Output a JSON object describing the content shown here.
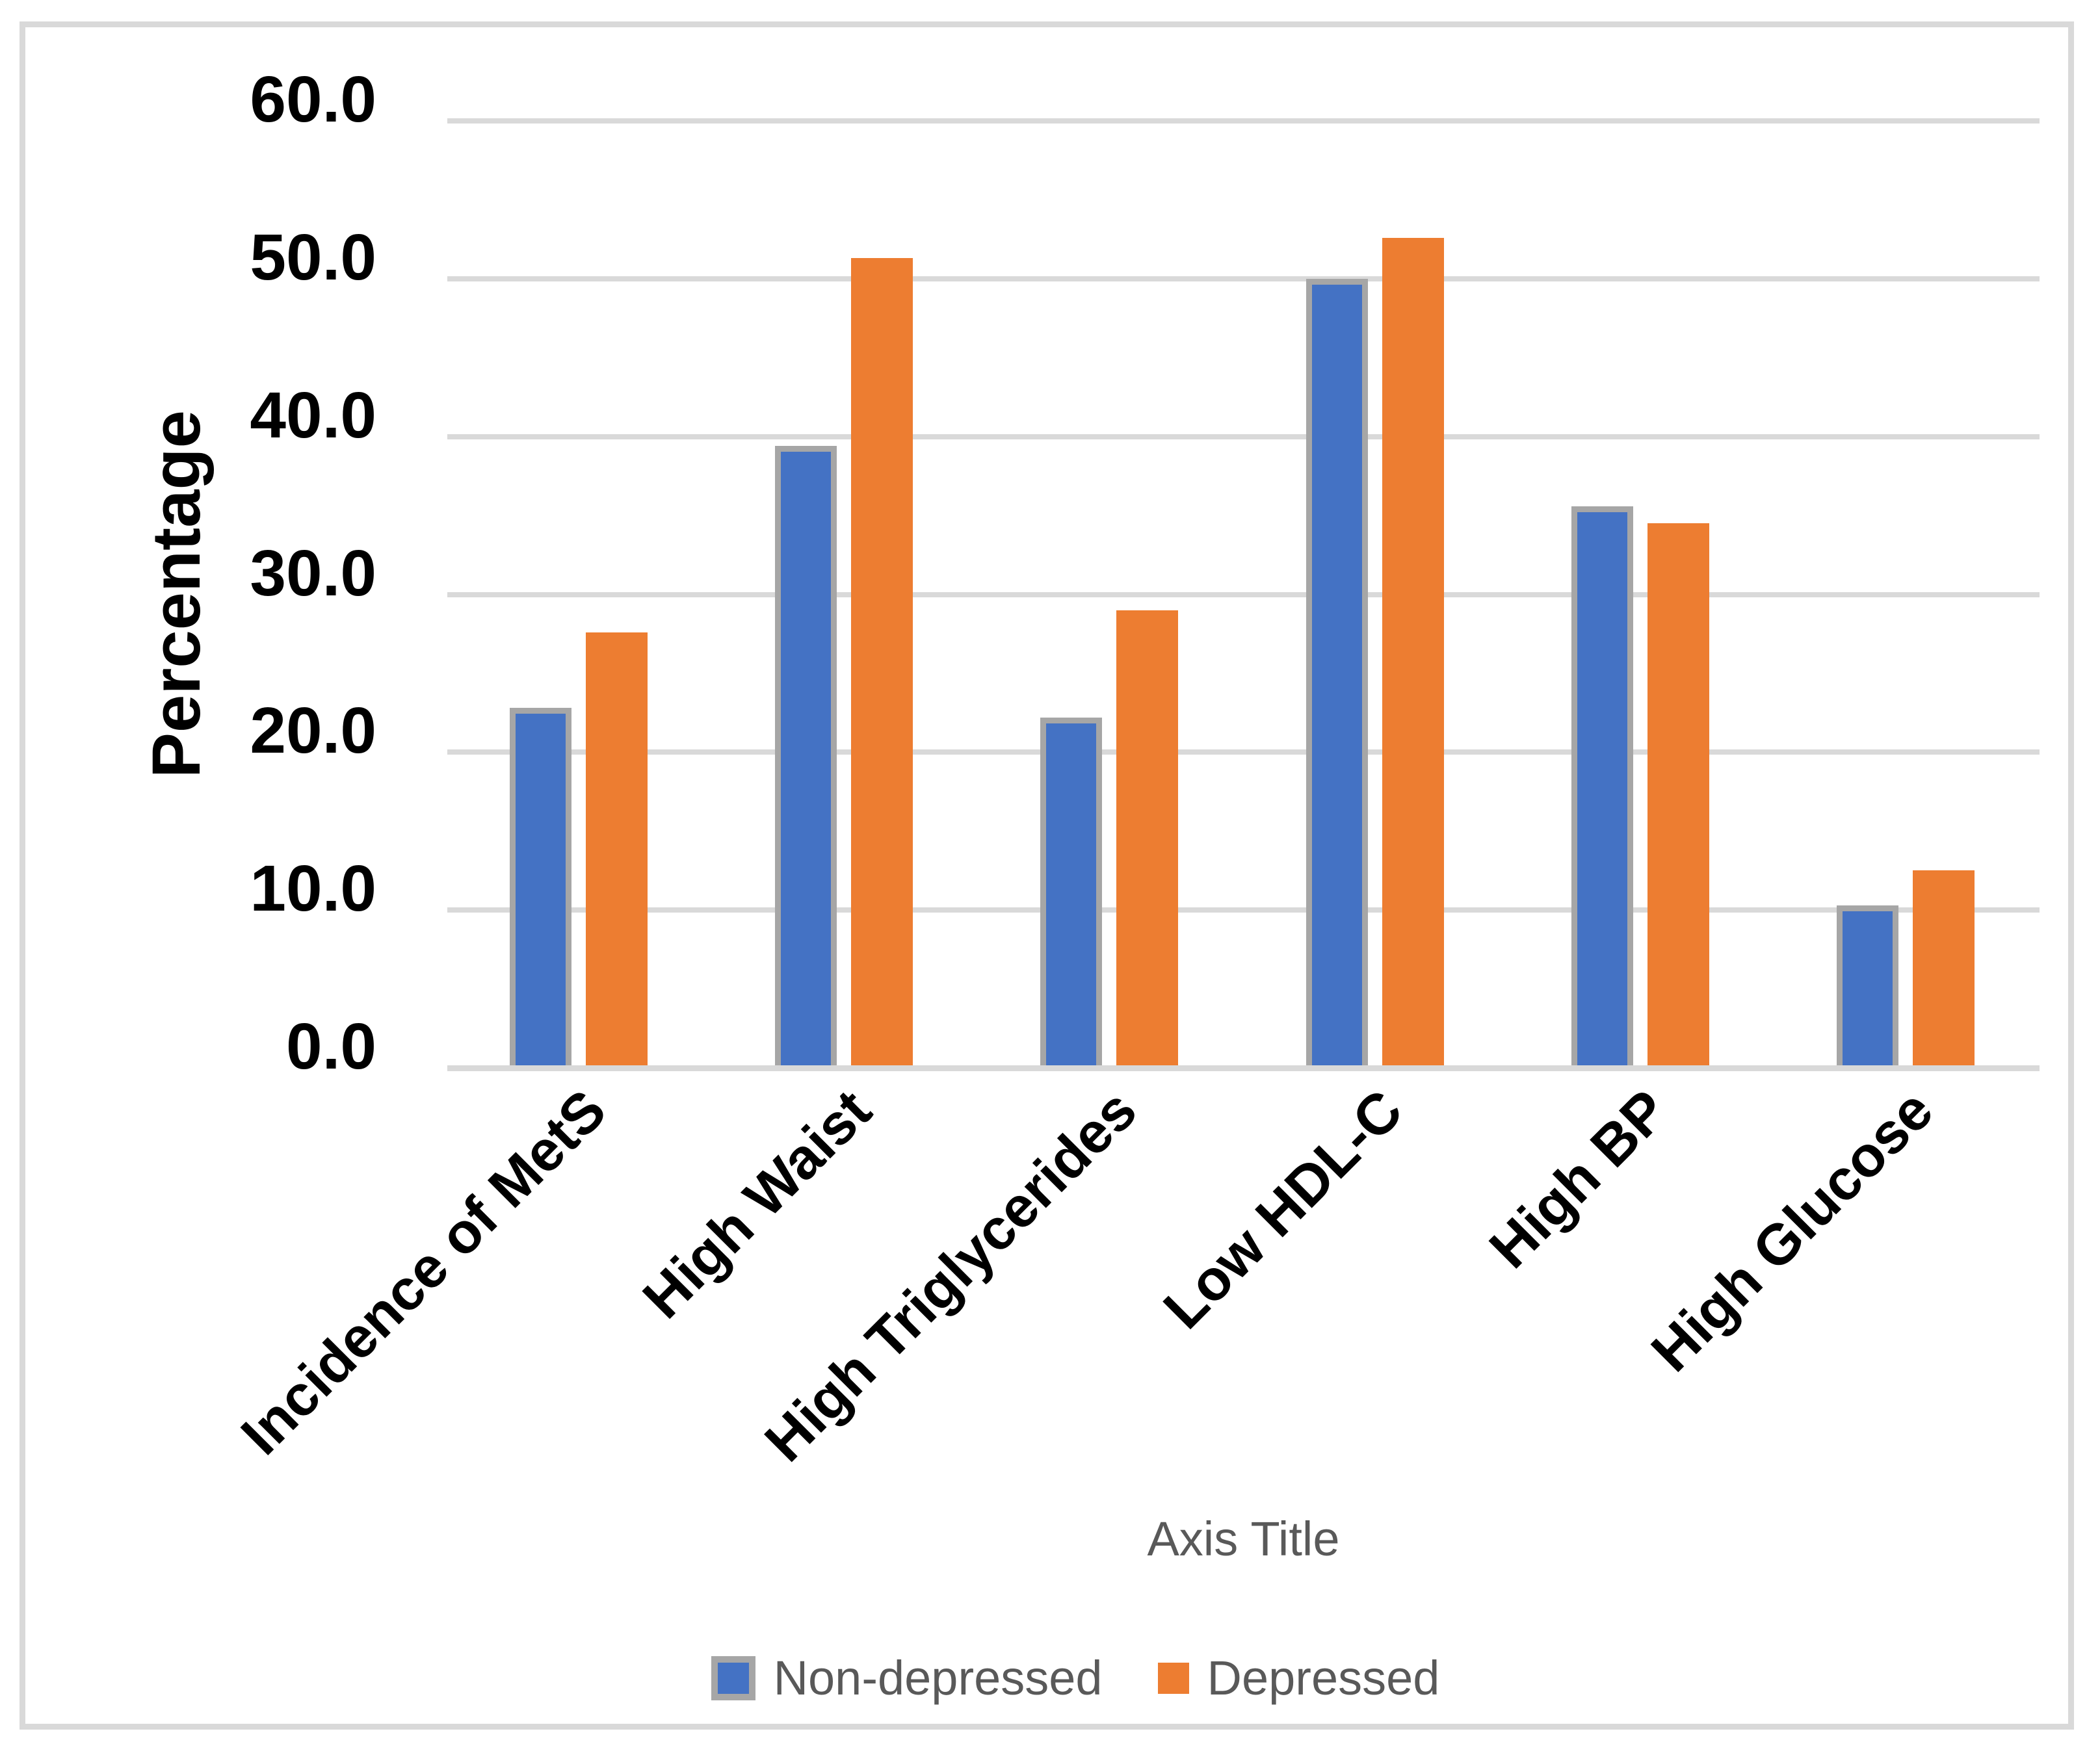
{
  "chart_data": {
    "type": "bar",
    "title": "",
    "categories": [
      "Incidence of MetS",
      "High Waist",
      "High Triglycerides",
      "Low HDL-C",
      "High BP",
      "High Glucose"
    ],
    "series": [
      {
        "name": "Non-depressed",
        "color": "#4472C4",
        "border_color": "#A6A6A6",
        "values": [
          22.8,
          39.4,
          22.2,
          50.0,
          35.6,
          10.3
        ]
      },
      {
        "name": "Depressed",
        "color": "#ED7D31",
        "border_color": null,
        "values": [
          27.6,
          51.3,
          29.0,
          52.6,
          34.5,
          12.5
        ]
      }
    ],
    "xlabel": "Axis Title",
    "ylabel": "Percentage",
    "ylim": [
      0,
      60
    ],
    "ytick_step": 10,
    "ytick_labels": [
      "0.0",
      "10.0",
      "20.0",
      "30.0",
      "40.0",
      "50.0",
      "60.0"
    ],
    "grid": true,
    "gridline_color": "#D9D9D9",
    "axis_line_color": "#D9D9D9",
    "frame_border_color": "#D9D9D9",
    "tick_label_color": "#000000",
    "muted_text_color": "#595959",
    "legend_position": "bottom"
  }
}
